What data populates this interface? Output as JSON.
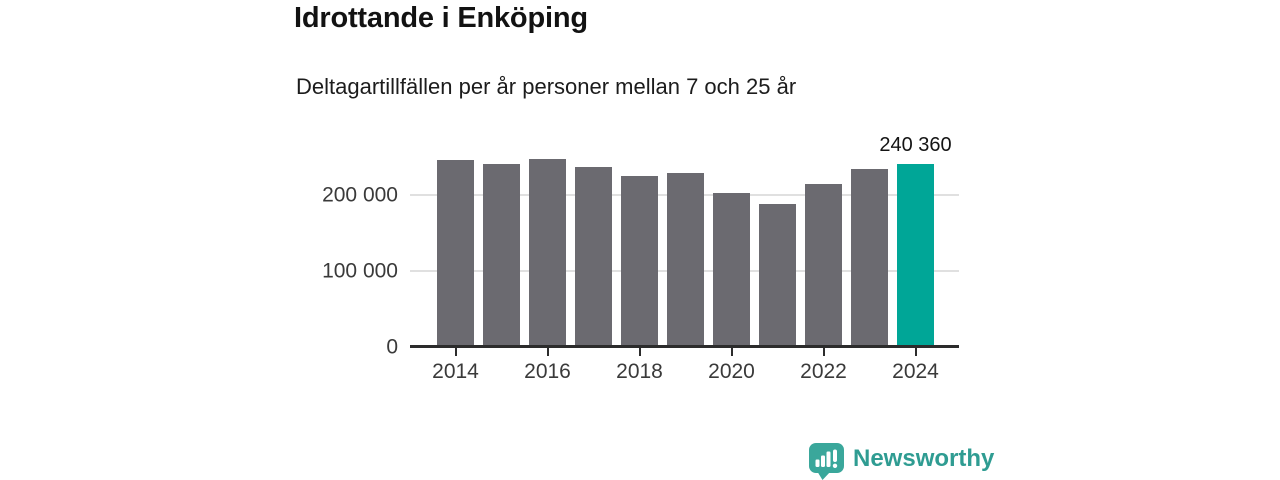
{
  "title": "Idrottande i Enköping",
  "subtitle": "Deltagartillfällen per år personer mellan 7 och 25 år",
  "chart_data": {
    "type": "bar",
    "categories": [
      "2014",
      "2015",
      "2016",
      "2017",
      "2018",
      "2019",
      "2020",
      "2021",
      "2022",
      "2023",
      "2024"
    ],
    "values": [
      246000,
      240500,
      247500,
      237000,
      225000,
      228500,
      202000,
      188000,
      215000,
      234000,
      240360
    ],
    "highlight_category": "2024",
    "annotation": {
      "text": "240 360",
      "category": "2024"
    },
    "yticks": [
      {
        "value": 0,
        "label": "0"
      },
      {
        "value": 100000,
        "label": "100 000"
      },
      {
        "value": 200000,
        "label": "200 000"
      }
    ],
    "xtick_labels": [
      "2014",
      "2016",
      "2018",
      "2020",
      "2022",
      "2024"
    ],
    "ylim": [
      0,
      260000
    ],
    "grid": "horizontal",
    "legend": "none",
    "colors": {
      "bar": "#6b6a70",
      "highlight": "#00a697",
      "gridline": "#e0e0e0",
      "axis": "#2c2c2c"
    }
  },
  "brand": {
    "name": "Newsworthy",
    "wordmark_color": "#2f9c92",
    "badge_color": "#3aa79b",
    "icon": "bar-chart-speech-bubble-icon"
  }
}
